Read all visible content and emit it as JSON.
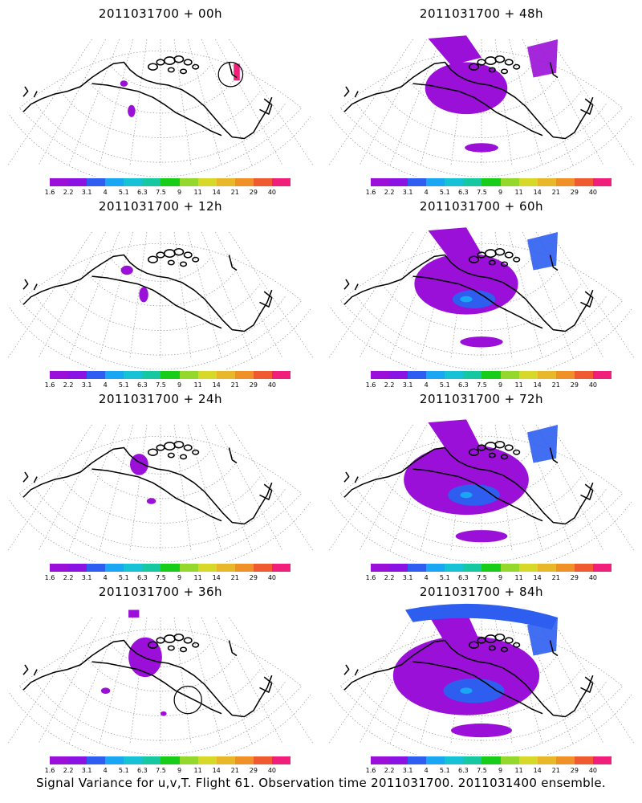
{
  "panels": [
    {
      "title": "2011031700 + 00h",
      "level": 0,
      "circle": "ne"
    },
    {
      "title": "2011031700 + 48h",
      "level": 4,
      "circle": ""
    },
    {
      "title": "2011031700 + 12h",
      "level": 1,
      "circle": ""
    },
    {
      "title": "2011031700 + 60h",
      "level": 5,
      "circle": ""
    },
    {
      "title": "2011031700 + 24h",
      "level": 2,
      "circle": ""
    },
    {
      "title": "2011031700 + 72h",
      "level": 6,
      "circle": ""
    },
    {
      "title": "2011031700 + 36h",
      "level": 3,
      "circle": "mid"
    },
    {
      "title": "2011031700 + 84h",
      "level": 7,
      "circle": ""
    }
  ],
  "colorbar": {
    "colors": [
      "#9a10d8",
      "#8a12e2",
      "#2d5ef0",
      "#1aa6f2",
      "#16c2d6",
      "#17c7a2",
      "#18cc1a",
      "#94d82c",
      "#d8d82a",
      "#e8b82a",
      "#f09028",
      "#f05a30",
      "#f0207a"
    ],
    "labels": [
      "1.6",
      "2.2",
      "3.1",
      "4",
      "5.1",
      "6.3",
      "7.5",
      "9",
      "11",
      "14",
      "21",
      "29",
      "40"
    ]
  },
  "footer": "Signal Variance for u,v,T. Flight 61. Observation time 2011031700. 2011031400 ensemble."
}
